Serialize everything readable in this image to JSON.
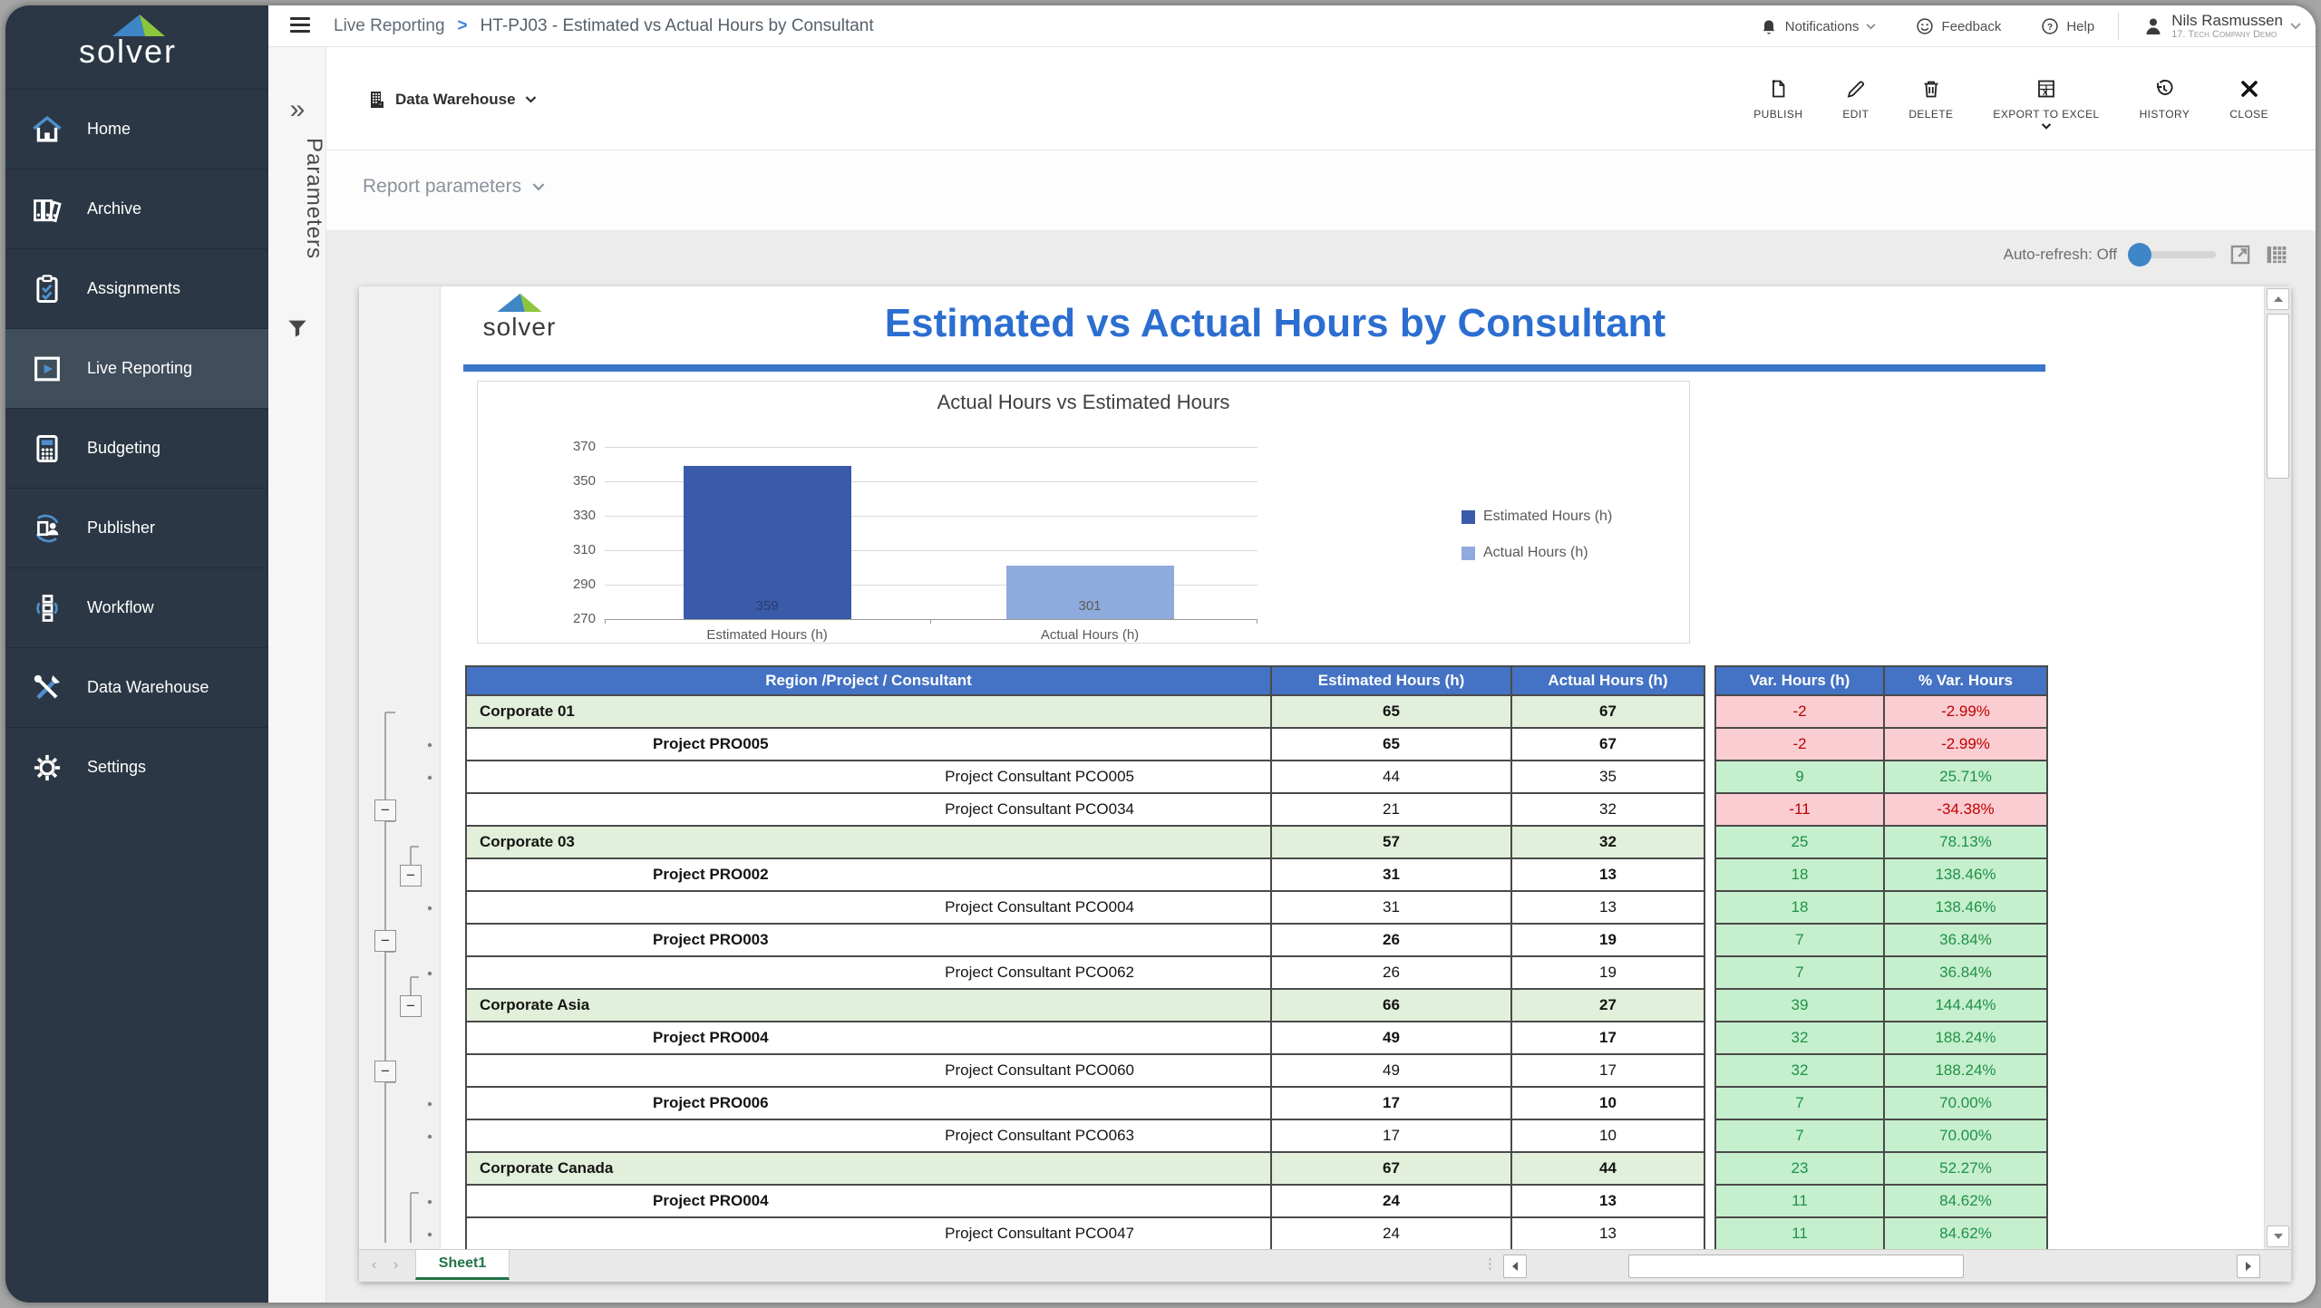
{
  "sidebar": {
    "logo_text": "solver",
    "items": [
      {
        "label": "Home",
        "icon": "home-icon",
        "active": false
      },
      {
        "label": "Archive",
        "icon": "archive-icon",
        "active": false
      },
      {
        "label": "Assignments",
        "icon": "assignments-icon",
        "active": false
      },
      {
        "label": "Live Reporting",
        "icon": "live-reporting-icon",
        "active": true
      },
      {
        "label": "Budgeting",
        "icon": "budgeting-icon",
        "active": false
      },
      {
        "label": "Publisher",
        "icon": "publisher-icon",
        "active": false
      },
      {
        "label": "Workflow",
        "icon": "workflow-icon",
        "active": false
      },
      {
        "label": "Data Warehouse",
        "icon": "data-warehouse-icon",
        "active": false
      },
      {
        "label": "Settings",
        "icon": "settings-icon",
        "active": false
      }
    ]
  },
  "topbar": {
    "breadcrumb_section": "Live Reporting",
    "breadcrumb_separator": ">",
    "breadcrumb_title": "HT-PJ03 - Estimated vs Actual Hours by Consultant",
    "notifications_label": "Notifications",
    "feedback_label": "Feedback",
    "help_label": "Help",
    "user_name": "Nils Rasmussen",
    "user_company": "17. Tech Company Demo"
  },
  "actionbar": {
    "source_label": "Data Warehouse",
    "buttons": [
      {
        "label": "PUBLISH",
        "icon": "publish-icon",
        "has_dropdown": false
      },
      {
        "label": "EDIT",
        "icon": "edit-icon",
        "has_dropdown": false
      },
      {
        "label": "DELETE",
        "icon": "delete-icon",
        "has_dropdown": false
      },
      {
        "label": "EXPORT TO EXCEL",
        "icon": "export-excel-icon",
        "has_dropdown": true
      },
      {
        "label": "HISTORY",
        "icon": "history-icon",
        "has_dropdown": false
      },
      {
        "label": "CLOSE",
        "icon": "close-icon",
        "has_dropdown": false
      }
    ]
  },
  "report_toolbar": {
    "parameters_rail_label": "Parameters",
    "params_label": "Report parameters",
    "auto_refresh_label": "Auto-refresh: Off"
  },
  "report": {
    "logo_text": "solver",
    "title": "Estimated vs Actual Hours by Consultant",
    "sheet_tab": "Sheet1"
  },
  "chart_data": {
    "type": "bar",
    "title": "Actual Hours vs Estimated Hours",
    "categories": [
      "Estimated Hours (h)",
      "Actual Hours (h)"
    ],
    "values": [
      359,
      301
    ],
    "data_labels": [
      "359",
      "301"
    ],
    "bar_colors": [
      "#3a5ba9",
      "#8faadc"
    ],
    "ylim": [
      270,
      370
    ],
    "yticks": [
      270,
      290,
      310,
      330,
      350,
      370
    ],
    "grid": true,
    "legend_position": "right",
    "legend": [
      {
        "label": "Estimated Hours (h)",
        "color": "#3a5ba9"
      },
      {
        "label": "Actual Hours (h)",
        "color": "#8faadc"
      }
    ]
  },
  "table": {
    "headers": [
      "Region /Project / Consultant",
      "Estimated Hours (h)",
      "Actual Hours (h)",
      "Var. Hours (h)",
      "% Var. Hours"
    ],
    "rows": [
      {
        "level": "region",
        "label": "Corporate 01",
        "est": "65",
        "act": "67",
        "var": "-2",
        "pct": "-2.99%"
      },
      {
        "level": "project",
        "label": "Project PRO005",
        "est": "65",
        "act": "67",
        "var": "-2",
        "pct": "-2.99%"
      },
      {
        "level": "consultant",
        "label": "Project Consultant PCO005",
        "est": "44",
        "act": "35",
        "var": "9",
        "pct": "25.71%"
      },
      {
        "level": "consultant",
        "label": "Project Consultant PCO034",
        "est": "21",
        "act": "32",
        "var": "-11",
        "pct": "-34.38%"
      },
      {
        "level": "region",
        "label": "Corporate 03",
        "est": "57",
        "act": "32",
        "var": "25",
        "pct": "78.13%"
      },
      {
        "level": "project",
        "label": "Project PRO002",
        "est": "31",
        "act": "13",
        "var": "18",
        "pct": "138.46%"
      },
      {
        "level": "consultant",
        "label": "Project Consultant PCO004",
        "est": "31",
        "act": "13",
        "var": "18",
        "pct": "138.46%"
      },
      {
        "level": "project",
        "label": "Project PRO003",
        "est": "26",
        "act": "19",
        "var": "7",
        "pct": "36.84%"
      },
      {
        "level": "consultant",
        "label": "Project Consultant PCO062",
        "est": "26",
        "act": "19",
        "var": "7",
        "pct": "36.84%"
      },
      {
        "level": "region",
        "label": "Corporate Asia",
        "est": "66",
        "act": "27",
        "var": "39",
        "pct": "144.44%"
      },
      {
        "level": "project",
        "label": "Project PRO004",
        "est": "49",
        "act": "17",
        "var": "32",
        "pct": "188.24%"
      },
      {
        "level": "consultant",
        "label": "Project Consultant PCO060",
        "est": "49",
        "act": "17",
        "var": "32",
        "pct": "188.24%"
      },
      {
        "level": "project",
        "label": "Project PRO006",
        "est": "17",
        "act": "10",
        "var": "7",
        "pct": "70.00%"
      },
      {
        "level": "consultant",
        "label": "Project Consultant PCO063",
        "est": "17",
        "act": "10",
        "var": "7",
        "pct": "70.00%"
      },
      {
        "level": "region",
        "label": "Corporate Canada",
        "est": "67",
        "act": "44",
        "var": "23",
        "pct": "52.27%"
      },
      {
        "level": "project",
        "label": "Project PRO004",
        "est": "24",
        "act": "13",
        "var": "11",
        "pct": "84.62%"
      },
      {
        "level": "consultant",
        "label": "Project Consultant PCO047",
        "est": "24",
        "act": "13",
        "var": "11",
        "pct": "84.62%"
      }
    ]
  },
  "colors": {
    "header_blue": "#4472c4",
    "region_row_bg": "#e2efda",
    "positive_bg": "#c6efce",
    "positive_text": "#1e9246",
    "negative_bg": "#facdd2",
    "negative_text": "#c00000",
    "accent_blue": "#3e86c6",
    "title_blue": "#2c6ed0"
  }
}
